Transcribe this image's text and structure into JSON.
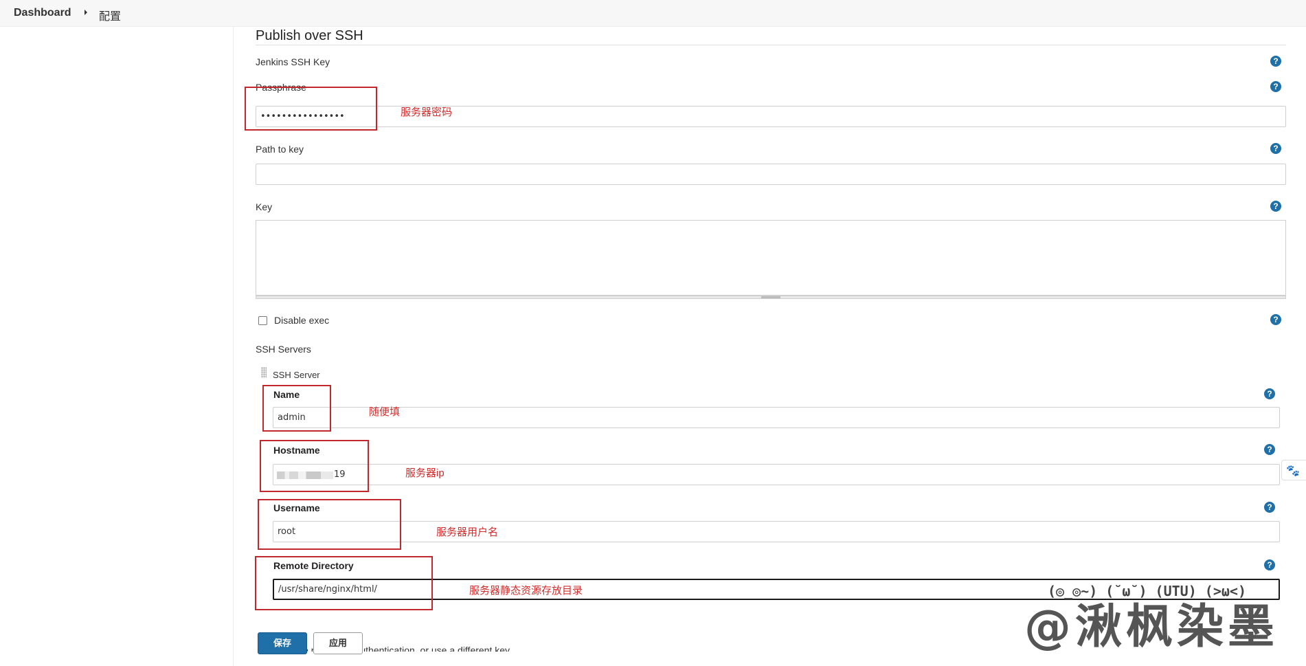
{
  "breadcrumb": {
    "dashboard": "Dashboard",
    "current": "配置"
  },
  "section": {
    "title": "Publish over SSH"
  },
  "fields": {
    "jenkins_ssh_key": {
      "label": "Jenkins SSH Key"
    },
    "passphrase": {
      "label": "Passphrase",
      "value": "••••••••••••••••"
    },
    "path_to_key": {
      "label": "Path to key",
      "value": ""
    },
    "key": {
      "label": "Key",
      "value": ""
    },
    "disable_exec": {
      "label": "Disable exec",
      "checked": false
    }
  },
  "ssh_servers": {
    "label": "SSH Servers",
    "server_title": "SSH Server",
    "name": {
      "label": "Name",
      "value": "admin"
    },
    "hostname": {
      "label": "Hostname",
      "value_visible_suffix": "19"
    },
    "username": {
      "label": "Username",
      "value": "root"
    },
    "remote_directory": {
      "label": "Remote Directory",
      "value": "/usr/share/nginx/html/"
    },
    "use_password_auth": {
      "label": "Use password authentication, or use a different key"
    }
  },
  "annotations": {
    "passphrase": "服务器密码",
    "name": "随便填",
    "hostname": "服务器ip",
    "username": "服务器用户名",
    "remote_directory": "服务器静态资源存放目录"
  },
  "buttons": {
    "save": "保存",
    "apply": "应用"
  },
  "help_glyph": "?",
  "icons": {
    "help": "help-circle-icon",
    "breadcrumb_sep": "chevron-right-icon",
    "side_ext": "paw-icon"
  },
  "watermark": {
    "text": "@湫枫染墨",
    "kaomoji": "(◎_◎~) (˘ω˘) (UTU) (>ω<)"
  },
  "colors": {
    "accent": "#1f6fa8",
    "annotation": "#d42b2b"
  }
}
